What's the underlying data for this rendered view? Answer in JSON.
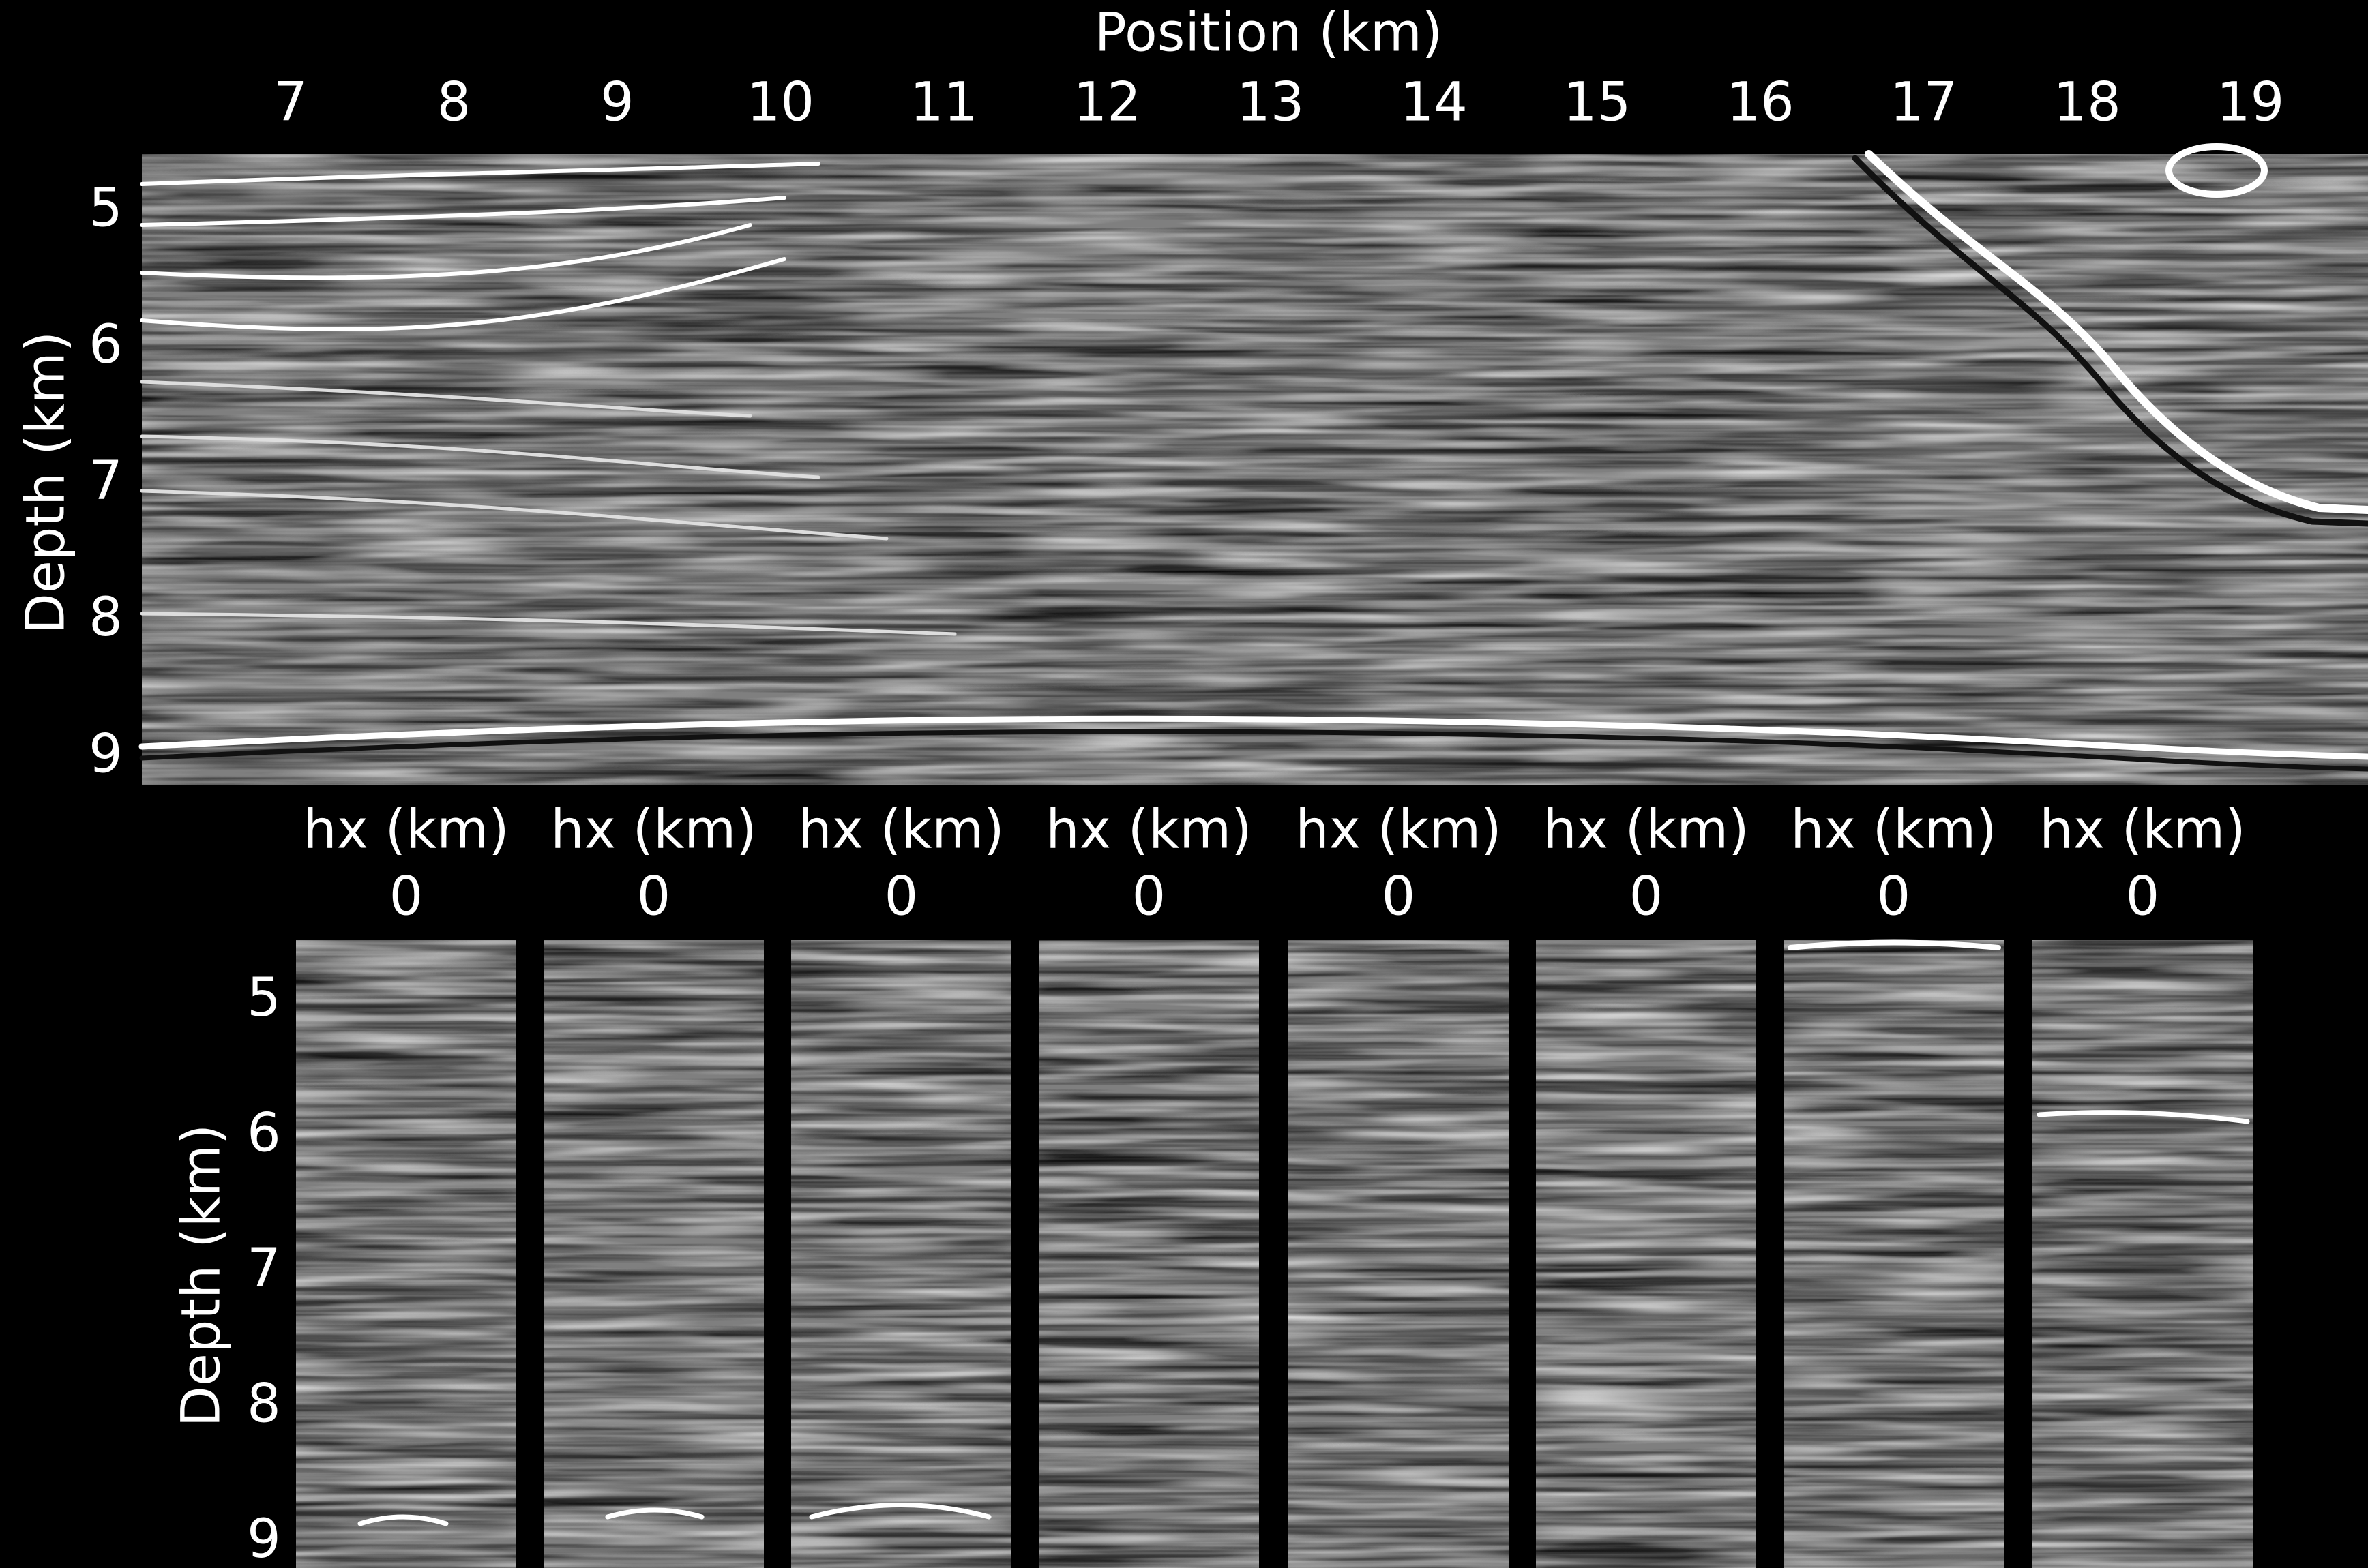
{
  "chart_data": [
    {
      "type": "image",
      "colormap": "gray",
      "xlabel": "Position (km)",
      "ylabel": "Depth (km)",
      "xlim": [
        6.09,
        19.72
      ],
      "xticks": [
        7,
        8,
        9,
        10,
        11,
        12,
        13,
        14,
        15,
        16,
        17,
        18,
        19
      ],
      "ylim": [
        4.58,
        9.2
      ],
      "yticks": [
        5,
        6,
        7,
        8,
        9
      ]
    },
    {
      "type": "image",
      "colormap": "gray",
      "xlabel": "hx (km)",
      "ylabel": "Depth (km)",
      "xlim": [
        -0.8,
        0.8
      ],
      "xticks": [
        0
      ],
      "ylim": [
        4.55,
        9.19
      ],
      "yticks": [
        5,
        6,
        7,
        8,
        9
      ]
    },
    {
      "type": "image",
      "colormap": "gray",
      "xlabel": "hx (km)",
      "xlim": [
        -0.8,
        0.8
      ],
      "xticks": [
        0
      ]
    },
    {
      "type": "image",
      "colormap": "gray",
      "xlabel": "hx (km)",
      "xlim": [
        -0.8,
        0.8
      ],
      "xticks": [
        0
      ]
    },
    {
      "type": "image",
      "colormap": "gray",
      "xlabel": "hx (km)",
      "xlim": [
        -0.8,
        0.8
      ],
      "xticks": [
        0
      ]
    },
    {
      "type": "image",
      "colormap": "gray",
      "xlabel": "hx (km)",
      "xlim": [
        -0.8,
        0.8
      ],
      "xticks": [
        0
      ]
    },
    {
      "type": "image",
      "colormap": "gray",
      "xlabel": "hx (km)",
      "xlim": [
        -0.8,
        0.8
      ],
      "xticks": [
        0
      ]
    },
    {
      "type": "image",
      "colormap": "gray",
      "xlabel": "hx (km)",
      "xlim": [
        -0.8,
        0.8
      ],
      "xticks": [
        0
      ]
    },
    {
      "type": "image",
      "colormap": "gray",
      "xlabel": "hx (km)",
      "xlim": [
        -0.8,
        0.8
      ],
      "xticks": [
        0
      ]
    }
  ]
}
